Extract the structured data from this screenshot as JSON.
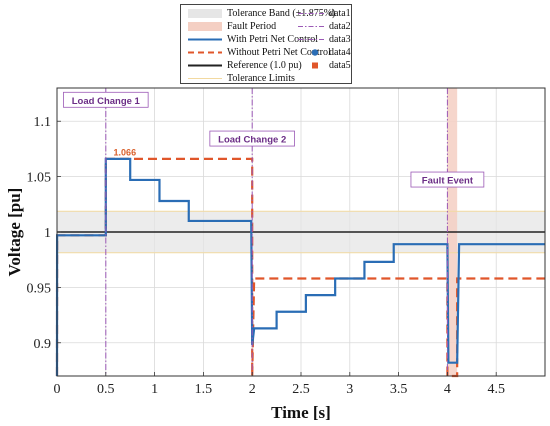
{
  "chart_data": {
    "type": "line",
    "xlabel": "Time [s]",
    "ylabel": "Voltage [pu]",
    "xlim": [
      0,
      5
    ],
    "ylim": [
      0.87,
      1.13
    ],
    "xticks": [
      "0",
      "0.5",
      "1",
      "1.5",
      "2",
      "2.5",
      "3",
      "3.5",
      "4",
      "4.5"
    ],
    "xtick_values": [
      0,
      0.5,
      1,
      1.5,
      2,
      2.5,
      3,
      3.5,
      4,
      4.5
    ],
    "yticks": [
      "0.9",
      "0.95",
      "1",
      "1.05",
      "1.1"
    ],
    "ytick_values": [
      0.9,
      0.95,
      1.0,
      1.05,
      1.1
    ],
    "grid": true,
    "legend_position": "top",
    "tolerance_band": {
      "label": "Tolerance Band (±1.875%)",
      "range": [
        0.98125,
        1.01875
      ],
      "color": "#e6e6e6"
    },
    "fault_period": {
      "label": "Fault Period",
      "range": [
        4.0,
        4.1
      ],
      "color": "#f4cfc3"
    },
    "series": [
      {
        "name": "With Petri Net Control",
        "color": "#2a6db5",
        "style": "solid",
        "points": [
          [
            0,
            0.87
          ],
          [
            0.001,
            0.997
          ],
          [
            0.5,
            0.997
          ],
          [
            0.5,
            1.066
          ],
          [
            0.75,
            1.066
          ],
          [
            0.75,
            1.047
          ],
          [
            1.05,
            1.047
          ],
          [
            1.05,
            1.028
          ],
          [
            1.35,
            1.028
          ],
          [
            1.35,
            1.01
          ],
          [
            1.99,
            1.01
          ],
          [
            2.0,
            0.898
          ],
          [
            2.02,
            0.913
          ],
          [
            2.25,
            0.913
          ],
          [
            2.25,
            0.928
          ],
          [
            2.55,
            0.928
          ],
          [
            2.55,
            0.943
          ],
          [
            2.85,
            0.943
          ],
          [
            2.85,
            0.958
          ],
          [
            3.15,
            0.958
          ],
          [
            3.15,
            0.973
          ],
          [
            3.45,
            0.973
          ],
          [
            3.45,
            0.989
          ],
          [
            4.0,
            0.989
          ],
          [
            4.01,
            0.882
          ],
          [
            4.1,
            0.882
          ],
          [
            4.12,
            0.989
          ],
          [
            5.0,
            0.989
          ]
        ]
      },
      {
        "name": "Without Petri Net Control",
        "color": "#e0562a",
        "style": "dashed",
        "points": [
          [
            0,
            0.87
          ],
          [
            0.001,
            0.997
          ],
          [
            0.5,
            0.997
          ],
          [
            0.5,
            1.066
          ],
          [
            2.0,
            1.066
          ],
          [
            2.0,
            0.87
          ],
          [
            2.02,
            0.958
          ],
          [
            4.0,
            0.958
          ],
          [
            4.0,
            0.87
          ],
          [
            4.1,
            0.87
          ],
          [
            4.1,
            0.958
          ],
          [
            5.0,
            0.958
          ]
        ]
      },
      {
        "name": "Reference (1.0 pu)",
        "color": "#222222",
        "style": "solid",
        "points": [
          [
            0,
            1.0
          ],
          [
            5,
            1.0
          ]
        ]
      },
      {
        "name": "Tolerance Limits",
        "color": "#f2d9a0",
        "style": "solid",
        "points": [
          [
            0,
            1.01875
          ],
          [
            5,
            1.01875
          ]
        ],
        "points_lower": [
          [
            0,
            0.98125
          ],
          [
            5,
            0.98125
          ]
        ]
      }
    ],
    "events": [
      {
        "label": "Load Change 1",
        "x": 0.5,
        "label_y": 1.118,
        "legend": "data1"
      },
      {
        "label": "Load Change 2",
        "x": 2.0,
        "label_y": 1.083,
        "legend": "data2"
      },
      {
        "label": "Fault Event",
        "x": 4.0,
        "label_y": 1.046,
        "legend": "data3"
      }
    ],
    "markers": [
      {
        "legend": "data4",
        "shape": "circle",
        "color": "#2a6db5"
      },
      {
        "legend": "data5",
        "shape": "square",
        "color": "#e0562a"
      }
    ],
    "peak_annotation": {
      "text": "1.066",
      "x": 0.6,
      "y": 1.069
    }
  },
  "legend": {
    "left": [
      {
        "label": "Tolerance Band (±1.875%)",
        "symbol": "patch",
        "color": "#e6e6e6"
      },
      {
        "label": "Fault Period",
        "symbol": "patch",
        "color": "#f4cfc3"
      },
      {
        "label": "With Petri Net Control",
        "symbol": "solid-line",
        "color": "#2a6db5"
      },
      {
        "label": "Without Petri Net Control",
        "symbol": "dashed-line",
        "color": "#e0562a"
      },
      {
        "label": "Reference (1.0 pu)",
        "symbol": "solid-line",
        "color": "#222222"
      },
      {
        "label": "Tolerance Limits",
        "symbol": "thin-line",
        "color": "#f2d9a0"
      }
    ],
    "right": [
      {
        "label": "data1",
        "symbol": "dashdot-line",
        "color": "#9b59b6"
      },
      {
        "label": "data2",
        "symbol": "dashdot-line",
        "color": "#9b59b6"
      },
      {
        "label": "data3",
        "symbol": "dashdot-line",
        "color": "#9b59b6"
      },
      {
        "label": "data4",
        "symbol": "circle",
        "color": "#2a6db5"
      },
      {
        "label": "data5",
        "symbol": "square",
        "color": "#e0562a"
      }
    ]
  }
}
